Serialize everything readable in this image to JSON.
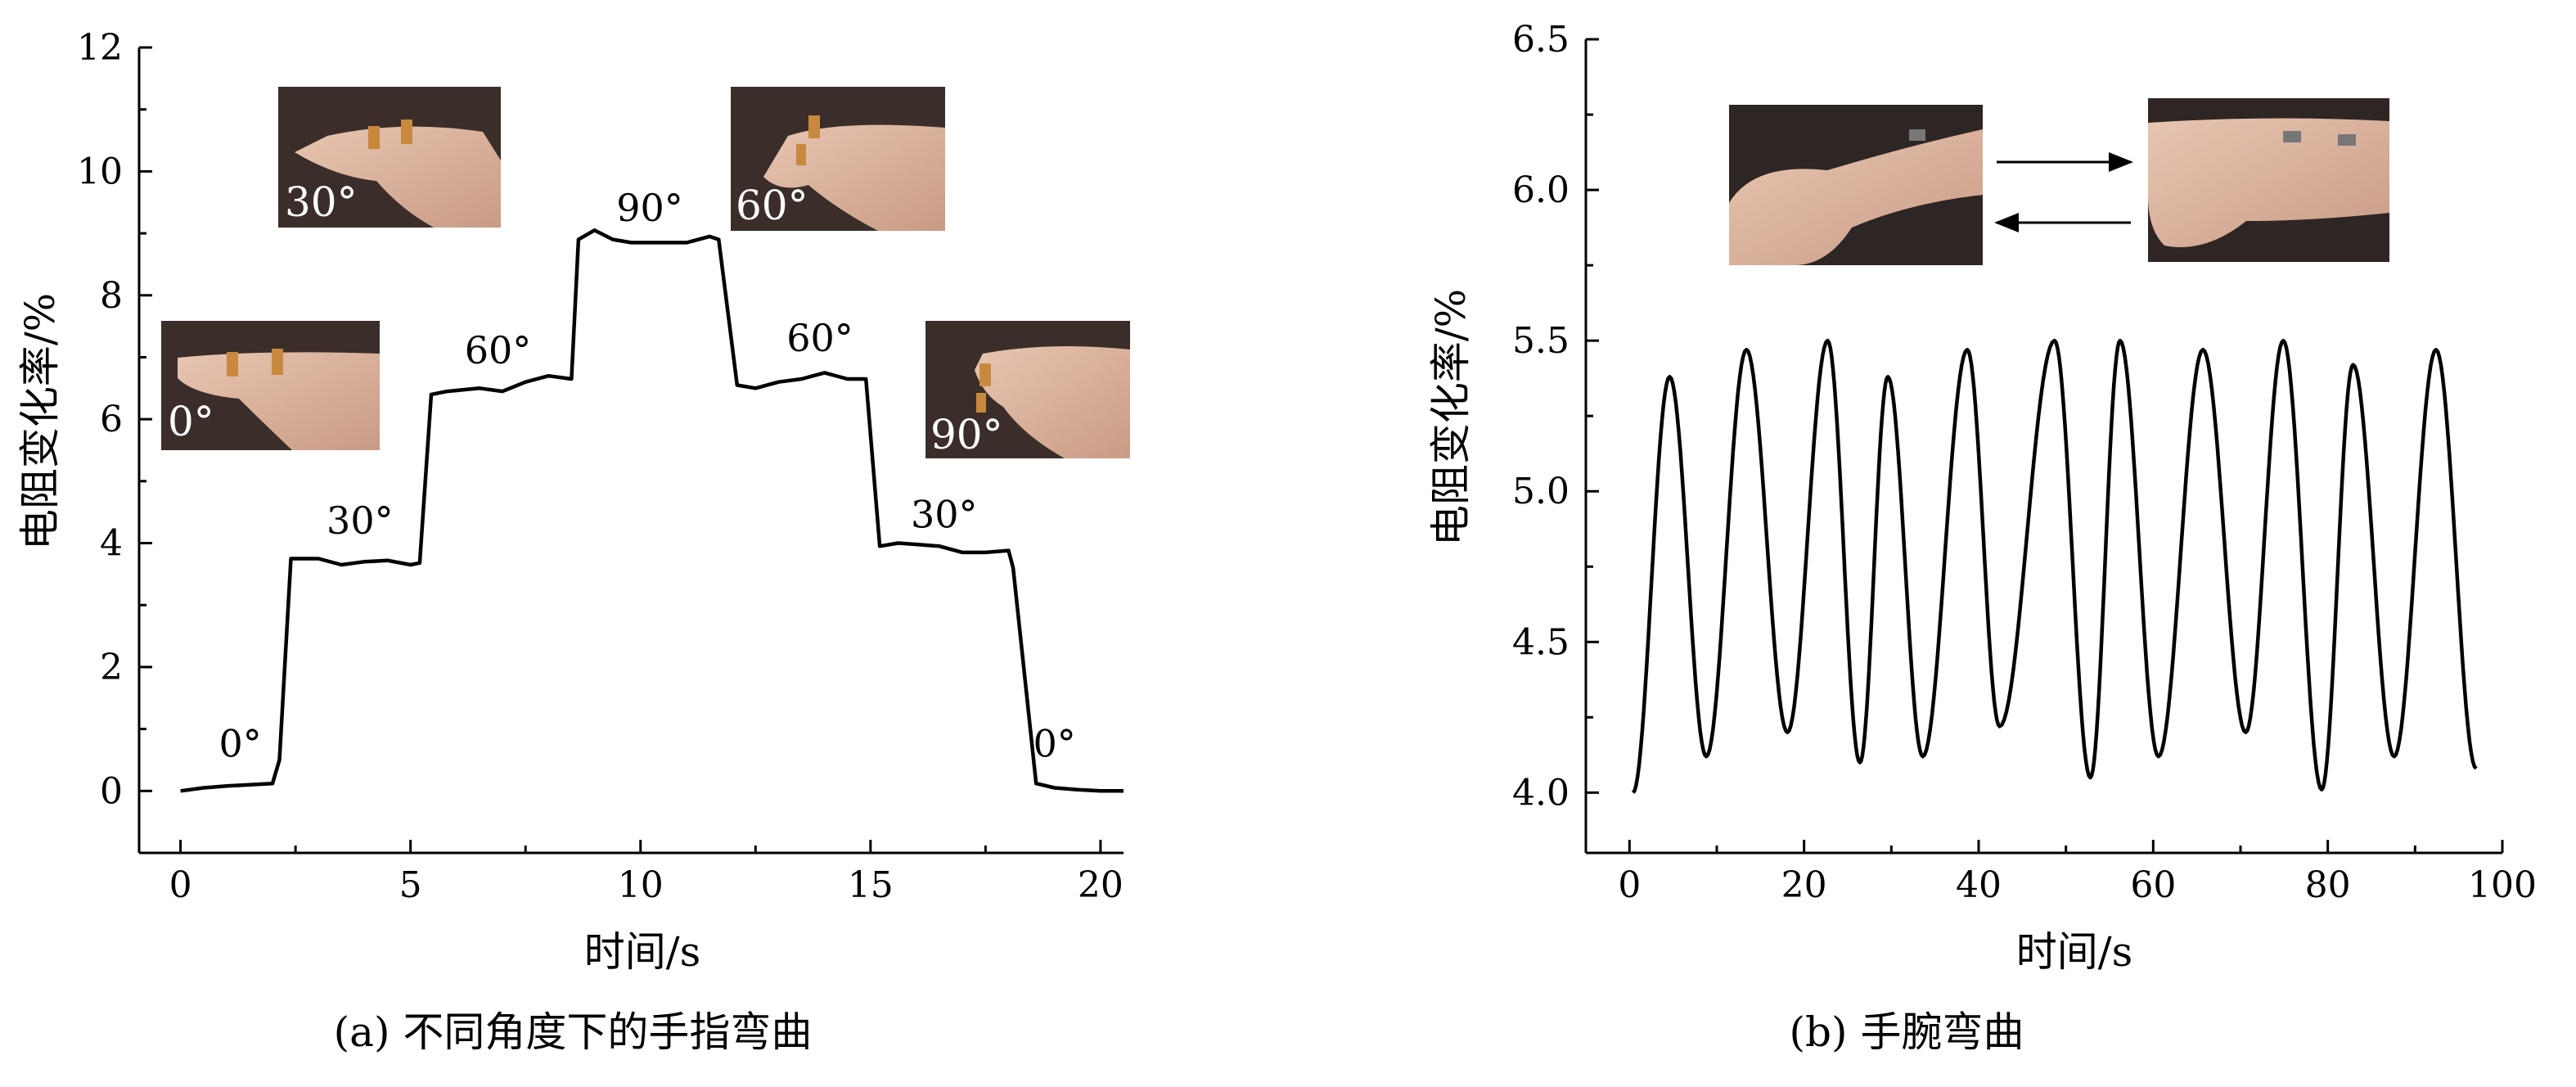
{
  "chart_data": [
    {
      "type": "line",
      "caption": "(a) 不同角度下的手指弯曲",
      "xlabel": "时间/s",
      "ylabel": "电阻变化率/%",
      "xlim": [
        -0.9,
        20.5
      ],
      "ylim": [
        -1,
        12
      ],
      "x_ticks": [
        "0",
        "5",
        "10",
        "15",
        "20"
      ],
      "y_ticks": [
        "0",
        "2",
        "4",
        "6",
        "8",
        "10",
        "12"
      ],
      "grid": false,
      "series": [
        {
          "x": [
            0,
            0.5,
            1.0,
            1.5,
            2.0,
            2.15,
            2.4,
            3.0,
            3.5,
            4.0,
            4.5,
            5.0,
            5.2,
            5.45,
            5.8,
            6.5,
            7.0,
            7.5,
            8.0,
            8.5,
            8.65,
            9.0,
            9.4,
            9.8,
            10.5,
            11.0,
            11.5,
            11.7,
            12.1,
            12.5,
            13.0,
            13.5,
            14.0,
            14.5,
            14.9,
            15.2,
            15.6,
            16.0,
            16.5,
            17.0,
            17.5,
            18.0,
            18.1,
            18.6,
            19.0,
            19.5,
            20.0,
            20.5
          ],
          "y": [
            0,
            0.05,
            0.08,
            0.1,
            0.12,
            0.5,
            3.75,
            3.75,
            3.65,
            3.7,
            3.72,
            3.65,
            3.68,
            6.4,
            6.45,
            6.5,
            6.45,
            6.6,
            6.7,
            6.65,
            8.9,
            9.05,
            8.9,
            8.85,
            8.85,
            8.85,
            8.95,
            8.9,
            6.55,
            6.5,
            6.6,
            6.65,
            6.75,
            6.65,
            6.65,
            3.95,
            4.0,
            3.98,
            3.95,
            3.85,
            3.85,
            3.88,
            3.6,
            0.12,
            0.05,
            0.02,
            0.0,
            0.0
          ]
        }
      ],
      "annotations": [
        {
          "text": "0°",
          "x": 1.3,
          "y": 0.55
        },
        {
          "text": "30°",
          "x": 3.9,
          "y": 4.15
        },
        {
          "text": "60°",
          "x": 6.9,
          "y": 6.9
        },
        {
          "text": "90°",
          "x": 10.2,
          "y": 9.2
        },
        {
          "text": "60°",
          "x": 13.9,
          "y": 7.1
        },
        {
          "text": "30°",
          "x": 16.6,
          "y": 4.25
        },
        {
          "text": "0°",
          "x": 19.0,
          "y": 0.55
        }
      ],
      "photos": [
        {
          "label": "30°",
          "icon": "finger-photo-30"
        },
        {
          "label": "60°",
          "icon": "finger-photo-60"
        },
        {
          "label": "0°",
          "icon": "finger-photo-0"
        },
        {
          "label": "90°",
          "icon": "finger-photo-90"
        }
      ]
    },
    {
      "type": "line",
      "caption": "(b) 手腕弯曲",
      "xlabel": "时间/s",
      "ylabel": "电阻变化率/%",
      "xlim": [
        -5,
        100
      ],
      "ylim": [
        3.8,
        6.5
      ],
      "x_ticks": [
        "0",
        "20",
        "40",
        "60",
        "80",
        "100"
      ],
      "y_ticks": [
        "4.0",
        "4.5",
        "5.0",
        "5.5",
        "6.0",
        "6.5"
      ],
      "grid": false,
      "series": [
        {
          "peaks": [
            {
              "t": 4.6,
              "y": 5.38
            },
            {
              "t": 13.4,
              "y": 5.47
            },
            {
              "t": 22.7,
              "y": 5.5
            },
            {
              "t": 29.6,
              "y": 5.38
            },
            {
              "t": 38.7,
              "y": 5.47
            },
            {
              "t": 48.7,
              "y": 5.5
            },
            {
              "t": 56.2,
              "y": 5.5
            },
            {
              "t": 65.7,
              "y": 5.47
            },
            {
              "t": 74.9,
              "y": 5.5
            },
            {
              "t": 82.9,
              "y": 5.42
            },
            {
              "t": 92.4,
              "y": 5.47
            }
          ],
          "troughs": [
            {
              "t": 0.4,
              "y": 4.0
            },
            {
              "t": 8.8,
              "y": 4.12
            },
            {
              "t": 18.1,
              "y": 4.2
            },
            {
              "t": 26.4,
              "y": 4.1
            },
            {
              "t": 33.6,
              "y": 4.12
            },
            {
              "t": 42.4,
              "y": 4.22
            },
            {
              "t": 52.8,
              "y": 4.05
            },
            {
              "t": 60.6,
              "y": 4.12
            },
            {
              "t": 70.6,
              "y": 4.2
            },
            {
              "t": 79.3,
              "y": 4.01
            },
            {
              "t": 87.6,
              "y": 4.12
            },
            {
              "t": 97.0,
              "y": 4.08
            }
          ]
        }
      ],
      "photos": [
        {
          "icon": "wrist-photo-bent"
        },
        {
          "icon": "wrist-photo-straight"
        }
      ]
    }
  ]
}
